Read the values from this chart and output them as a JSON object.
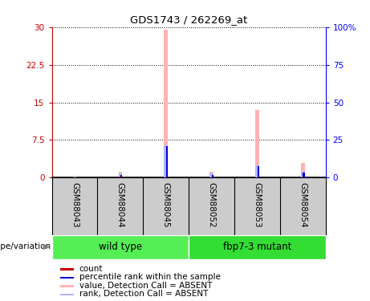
{
  "title": "GDS1743 / 262269_at",
  "samples": [
    "GSM88043",
    "GSM88044",
    "GSM88045",
    "GSM88052",
    "GSM88053",
    "GSM88054"
  ],
  "ylim_left": [
    0,
    30
  ],
  "ylim_right": [
    0,
    100
  ],
  "yticks_left": [
    0,
    7.5,
    15,
    22.5,
    30
  ],
  "ytick_labels_left": [
    "0",
    "7.5",
    "15",
    "22.5",
    "30"
  ],
  "yticks_right": [
    0,
    25,
    50,
    75,
    100
  ],
  "ytick_labels_right": [
    "0",
    "25",
    "50",
    "75",
    "100%"
  ],
  "value_absent": [
    0.3,
    1.2,
    29.5,
    1.1,
    13.5,
    3.0
  ],
  "rank_absent": [
    0.15,
    0.9,
    6.5,
    0.8,
    2.5,
    1.2
  ],
  "count": [
    0.05,
    0.15,
    0.12,
    0.08,
    0.12,
    0.1
  ],
  "percentile_rank": [
    0.12,
    0.5,
    6.3,
    0.5,
    2.3,
    1.0
  ],
  "color_value_absent": "#ffb3b3",
  "color_rank_absent": "#b3b3ff",
  "color_count": "#cc0000",
  "color_percentile": "#0000cc",
  "sample_bg_color": "#cccccc",
  "group1_bg": "#55ee55",
  "group2_bg": "#33dd33",
  "legend_items": [
    {
      "label": "count",
      "color": "#cc0000"
    },
    {
      "label": "percentile rank within the sample",
      "color": "#0000cc"
    },
    {
      "label": "value, Detection Call = ABSENT",
      "color": "#ffb3b3"
    },
    {
      "label": "rank, Detection Call = ABSENT",
      "color": "#b3b3ff"
    }
  ]
}
